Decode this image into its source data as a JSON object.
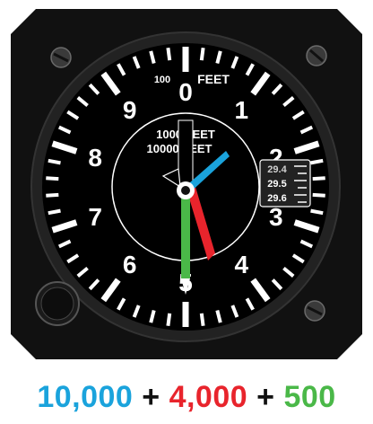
{
  "dial": {
    "numerals": [
      "0",
      "1",
      "2",
      "3",
      "4",
      "5",
      "6",
      "7",
      "8",
      "9"
    ],
    "label_100": "100",
    "label_feet": "FEET",
    "label_1000_feet": "1000 FEET",
    "label_10000_feet": "10000 FEET"
  },
  "pressure_window": {
    "values": [
      "29.4",
      "29.5",
      "29.6"
    ],
    "selected": "29.5"
  },
  "hands": {
    "ten_thousands": {
      "reading": 10000,
      "color": "#1aa3dc"
    },
    "thousands": {
      "reading": 4000,
      "color": "#e8242c"
    },
    "hundreds": {
      "reading": 500,
      "color": "#4ab848"
    }
  },
  "equation": {
    "term_1": "10,000",
    "op_1": "+",
    "term_2": "4,000",
    "op_2": "+",
    "term_3": "500"
  },
  "colors": {
    "case": "#111111",
    "bezel": "#2a2a2a",
    "face": "#000000",
    "markings": "#ffffff"
  }
}
